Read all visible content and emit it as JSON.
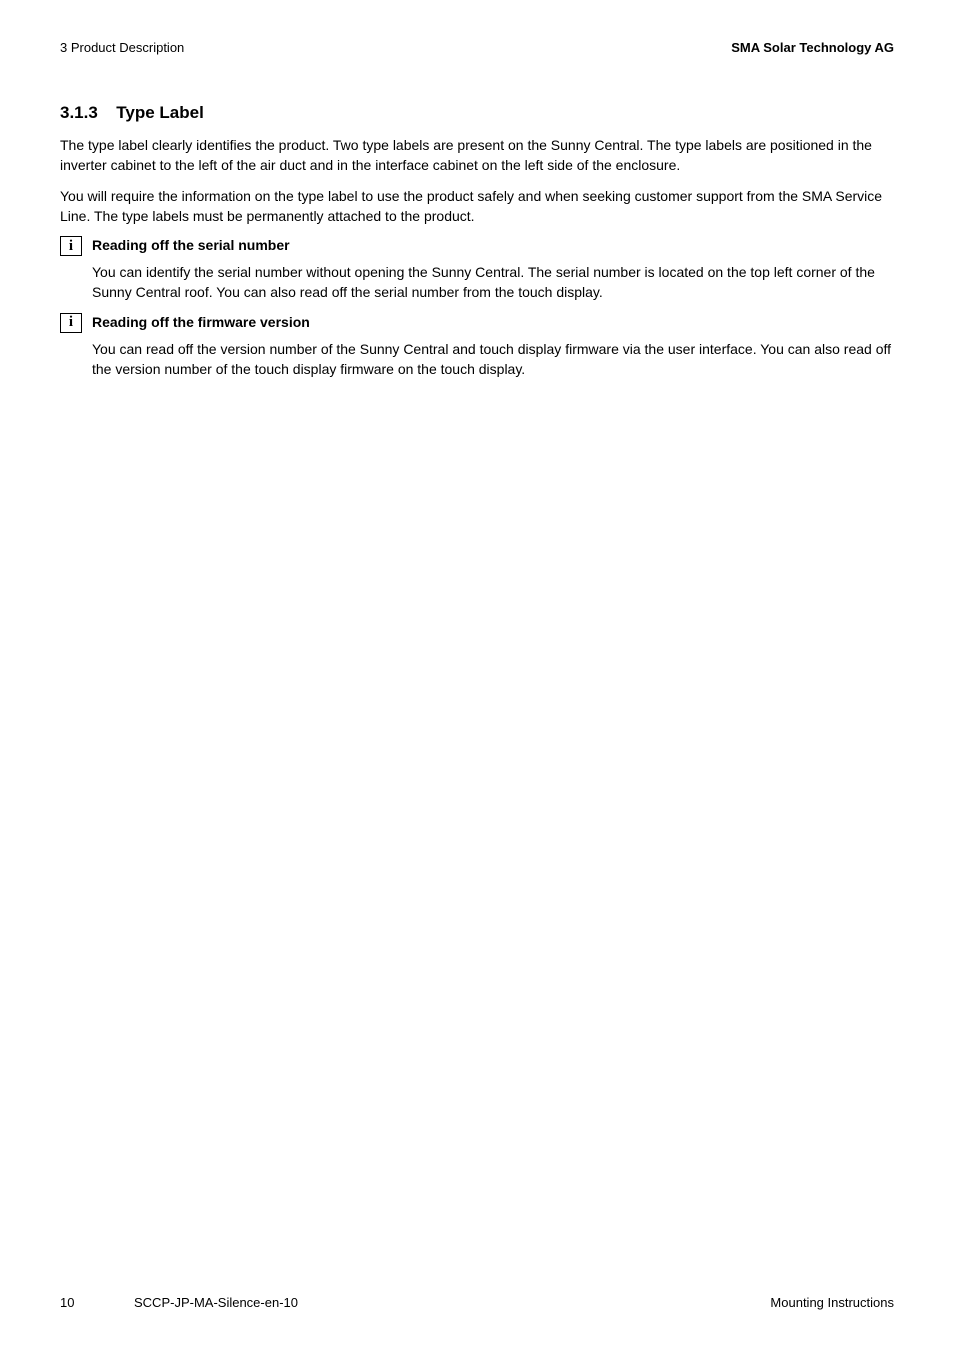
{
  "header": {
    "left": "3  Product Description",
    "right": "SMA Solar Technology AG"
  },
  "section": {
    "number": "3.1.3",
    "title": "Type Label"
  },
  "paragraphs": {
    "p1": "The type label clearly identifies the product. Two type labels are present on the Sunny Central. The type labels are positioned in the inverter cabinet to the left of the air duct and in the interface cabinet on the left side of the enclosure.",
    "p2": "You will require the information on the type label to use the product safely and when seeking customer support from the SMA Service Line. The type labels must be permanently attached to the product."
  },
  "infoBlocks": {
    "b1": {
      "icon": "i",
      "heading": "Reading off the serial number",
      "body": "You can identify the serial number without opening the Sunny Central. The serial number is located on the top left corner of the Sunny Central roof. You can also read off the serial number from the touch display."
    },
    "b2": {
      "icon": "i",
      "heading": "Reading off the firmware version",
      "body": "You can read off the version number of the Sunny Central and touch display firmware via the user interface. You can also read off the version number of the touch display firmware on the touch display."
    }
  },
  "footer": {
    "page": "10",
    "docid": "SCCP-JP-MA-Silence-en-10",
    "doctype": "Mounting Instructions"
  },
  "colors": {
    "text": "#000000",
    "background": "#ffffff"
  }
}
